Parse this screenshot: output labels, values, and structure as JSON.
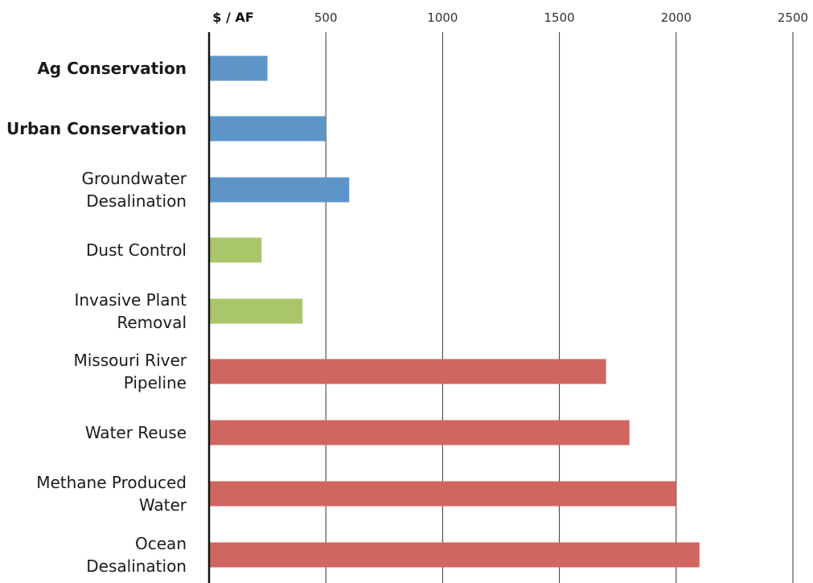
{
  "chart_data": {
    "type": "bar",
    "orientation": "horizontal",
    "unit_label": "$ / AF",
    "x_ticks": [
      "500",
      "1000",
      "1500",
      "2000",
      "2500"
    ],
    "xlim": [
      0,
      2500
    ],
    "grid": true,
    "categories": [
      {
        "label": [
          "Ag Conservation"
        ],
        "value": 250,
        "color": "#5e95c9",
        "bold": true
      },
      {
        "label": [
          "Urban Conservation"
        ],
        "value": 500,
        "color": "#5e95c9",
        "bold": true
      },
      {
        "label": [
          "Groundwater",
          "Desalination"
        ],
        "value": 600,
        "color": "#5e95c9",
        "bold": false
      },
      {
        "label": [
          "Dust Control"
        ],
        "value": 225,
        "color": "#a9c66b",
        "bold": false
      },
      {
        "label": [
          "Invasive Plant",
          "Removal"
        ],
        "value": 400,
        "color": "#a9c66b",
        "bold": false
      },
      {
        "label": [
          "Missouri River",
          "Pipeline"
        ],
        "value": 1700,
        "color": "#d06660",
        "bold": false
      },
      {
        "label": [
          "Water Reuse"
        ],
        "value": 1800,
        "color": "#d06660",
        "bold": false
      },
      {
        "label": [
          "Methane Produced",
          "Water"
        ],
        "value": 2000,
        "color": "#d06660",
        "bold": false
      },
      {
        "label": [
          "Ocean",
          "Desalination"
        ],
        "value": 2100,
        "color": "#d06660",
        "bold": false
      }
    ]
  }
}
